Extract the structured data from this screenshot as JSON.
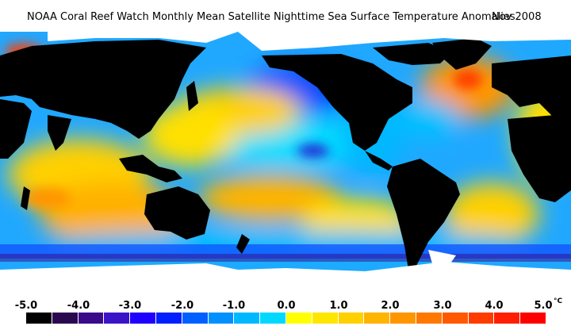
{
  "header": {
    "title": "NOAA Coral Reef Watch Monthly Mean Satellite Nighttime Sea Surface Temperature Anomalies",
    "date": "Nov 2008"
  },
  "legend": {
    "ticks": [
      "-5.0",
      "-4.0",
      "-3.0",
      "-2.0",
      "-1.0",
      "0.0",
      "1.0",
      "2.0",
      "3.0",
      "4.0",
      "5.0"
    ],
    "unit": "°C",
    "colors": [
      "#000000",
      "#2a0850",
      "#3a0a8a",
      "#3c14c8",
      "#2000ff",
      "#0020ff",
      "#0060ff",
      "#0090ff",
      "#00b8ff",
      "#00d8ff",
      "#ffff00",
      "#ffe600",
      "#ffd000",
      "#ffb400",
      "#ff9600",
      "#ff7800",
      "#ff5a00",
      "#ff3c00",
      "#ff1e00",
      "#ff0000"
    ]
  },
  "map": {
    "land_color": "#000000",
    "ice_color": "#ffffff",
    "ocean_base_color": "#00a0ff"
  }
}
